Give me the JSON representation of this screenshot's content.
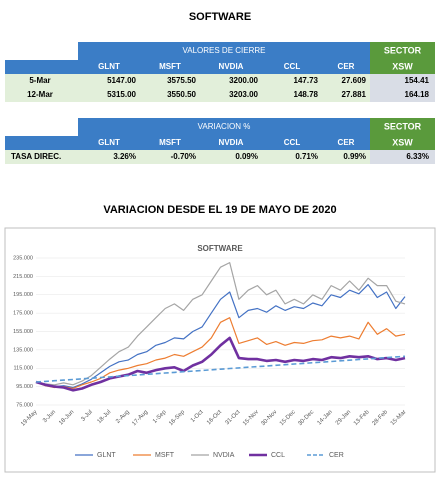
{
  "title": "SOFTWARE",
  "table1": {
    "header": "VALORES DE CIERRE",
    "sector": "SECTOR",
    "sector_sub": "XSW",
    "columns": [
      "GLNT",
      "MSFT",
      "NVDIA",
      "CCL",
      "CER"
    ],
    "rows": [
      {
        "label": "5-Mar",
        "cells": [
          "5147.00",
          "3575.50",
          "3200.00",
          "147.73",
          "27.609"
        ],
        "sector": "154.41"
      },
      {
        "label": "12-Mar",
        "cells": [
          "5315.00",
          "3550.50",
          "3203.00",
          "148.78",
          "27.881"
        ],
        "sector": "164.18"
      }
    ]
  },
  "table2": {
    "header": "VARIACION %",
    "sector": "SECTOR",
    "sector_sub": "XSW",
    "columns": [
      "GLNT",
      "MSFT",
      "NVDIA",
      "CCL",
      "CER"
    ],
    "rows": [
      {
        "label": "TASA DIREC.",
        "cells": [
          "3.26%",
          "-0.70%",
          "0.09%",
          "0.71%",
          "0.99%"
        ],
        "sector": "6.33%"
      }
    ]
  },
  "subtitle": "VARIACION DESDE EL 19 DE MAYO DE 2020",
  "chart_data": {
    "type": "line",
    "title": "SOFTWARE",
    "categories": [
      "19-May",
      null,
      "3-Jun",
      null,
      "18-Jun",
      null,
      "3-Jul",
      null,
      "18-Jul",
      null,
      "2-Aug",
      null,
      "17-Aug",
      null,
      "1-Sep",
      null,
      "16-Sep",
      null,
      "1-Oct",
      null,
      "16-Oct",
      null,
      "31-Oct",
      null,
      "15-Nov",
      null,
      "30-Nov",
      null,
      "15-Dec",
      null,
      "30-Dec",
      null,
      "14-Jan",
      null,
      "29-Jan",
      null,
      "13-Feb",
      null,
      "28-Feb",
      null,
      "15-Mar"
    ],
    "series": [
      {
        "name": "GLNT",
        "color": "#4472c4",
        "width": 1.2,
        "dash": false,
        "values": [
          100,
          97,
          95,
          96,
          94,
          98,
          103,
          110,
          117,
          122,
          124,
          130,
          133,
          140,
          143,
          148,
          147,
          155,
          160,
          175,
          190,
          198,
          170,
          178,
          180,
          176,
          183,
          178,
          182,
          180,
          186,
          183,
          195,
          192,
          200,
          196,
          206,
          192,
          198,
          180,
          193
        ]
      },
      {
        "name": "MSFT",
        "color": "#ed7d31",
        "width": 1.2,
        "dash": false,
        "values": [
          100,
          96,
          94,
          95,
          93,
          97,
          100,
          104,
          110,
          113,
          115,
          118,
          120,
          124,
          126,
          130,
          128,
          133,
          138,
          148,
          165,
          170,
          142,
          145,
          148,
          141,
          144,
          140,
          143,
          142,
          145,
          146,
          150,
          148,
          150,
          147,
          165,
          152,
          158,
          150,
          152
        ]
      },
      {
        "name": "NVDIA",
        "color": "#a5a5a5",
        "width": 1.2,
        "dash": false,
        "values": [
          100,
          98,
          97,
          99,
          97,
          101,
          107,
          116,
          125,
          133,
          138,
          150,
          160,
          170,
          180,
          185,
          178,
          190,
          195,
          210,
          225,
          230,
          190,
          200,
          205,
          195,
          200,
          185,
          190,
          185,
          195,
          190,
          205,
          200,
          210,
          200,
          213,
          205,
          205,
          188,
          185
        ]
      },
      {
        "name": "CCL",
        "color": "#7030a0",
        "width": 2.6,
        "dash": false,
        "values": [
          100,
          97,
          95,
          94,
          91,
          93,
          97,
          100,
          104,
          106,
          108,
          112,
          110,
          113,
          115,
          116,
          112,
          118,
          122,
          130,
          140,
          148,
          126,
          125,
          125,
          123,
          124,
          122,
          124,
          123,
          125,
          124,
          127,
          126,
          128,
          127,
          128,
          125,
          126,
          124,
          126
        ]
      },
      {
        "name": "CER",
        "color": "#5b9bd5",
        "width": 1.6,
        "dash": true,
        "values": [
          100,
          100.7,
          101.4,
          102.1,
          102.8,
          103.5,
          104.2,
          104.9,
          105.6,
          106.3,
          107,
          107.7,
          108.4,
          109.1,
          109.8,
          110.5,
          111.2,
          111.9,
          112.6,
          113.3,
          114,
          114.7,
          115.4,
          116.1,
          116.8,
          117.5,
          118.2,
          118.9,
          119.6,
          120.3,
          121,
          121.7,
          122.4,
          123.1,
          123.8,
          124.5,
          125.2,
          125.9,
          126.6,
          127.3,
          128
        ]
      }
    ],
    "ylim": [
      75,
      235
    ],
    "yticks": [
      {
        "value": 75,
        "label": "75.000"
      },
      {
        "value": 95,
        "label": "95.000"
      },
      {
        "value": 115,
        "label": "115.000"
      },
      {
        "value": 135,
        "label": "135.000"
      },
      {
        "value": 155,
        "label": "155.000"
      },
      {
        "value": 175,
        "label": "175.000"
      },
      {
        "value": 195,
        "label": "195.000"
      },
      {
        "value": 215,
        "label": "215.000"
      },
      {
        "value": 235,
        "label": "235.000"
      }
    ],
    "grid": true
  }
}
